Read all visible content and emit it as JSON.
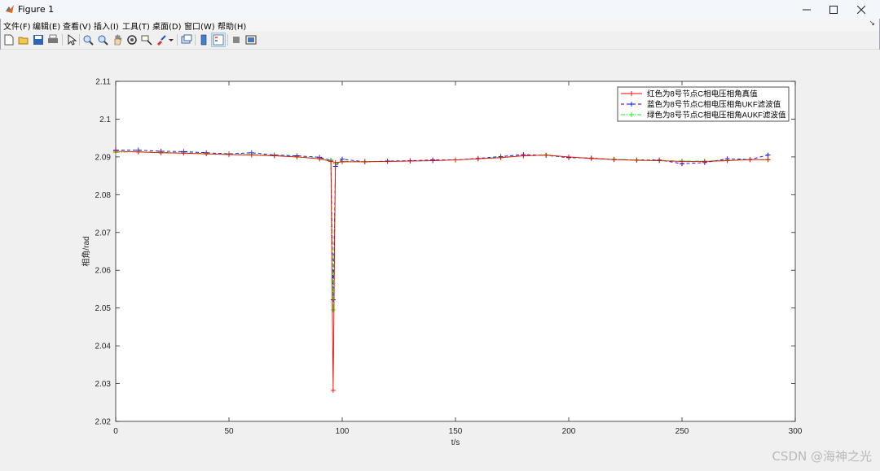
{
  "window": {
    "title": "Figure 1"
  },
  "menu": [
    "文件(F)",
    "编辑(E)",
    "查看(V)",
    "插入(I)",
    "工具(T)",
    "桌面(D)",
    "窗口(W)",
    "帮助(H)"
  ],
  "toolbar": {
    "icons": [
      "new-figure-icon",
      "open-file-icon",
      "save-icon",
      "print-icon",
      "pointer-icon",
      "zoom-in-icon",
      "zoom-out-icon",
      "pan-icon",
      "rotate-3d-icon",
      "data-cursor-icon",
      "brush-icon",
      "link-plot-icon",
      "colorbar-icon",
      "legend-icon",
      "hide-plot-tools-icon",
      "show-plot-tools-icon"
    ]
  },
  "watermark": "CSDN @海神之光",
  "chart_data": {
    "type": "line",
    "title": "",
    "xlabel": "t/s",
    "ylabel": "相角/rad",
    "xlim": [
      0,
      300
    ],
    "ylim": [
      2.02,
      2.11
    ],
    "xticks": [
      "0",
      "50",
      "100",
      "150",
      "200",
      "250",
      "300"
    ],
    "yticks": [
      "2.02",
      "2.03",
      "2.04",
      "2.05",
      "2.06",
      "2.07",
      "2.08",
      "2.09",
      "2.1",
      "2.11"
    ],
    "grid": false,
    "legend_position": "top-right",
    "series": [
      {
        "name": "红色为8号节点C相电压相角真值",
        "color": "#ff0000",
        "line": "solid",
        "marker": "+",
        "x": [
          0,
          10,
          20,
          30,
          40,
          50,
          60,
          70,
          80,
          90,
          95,
          96,
          97,
          100,
          110,
          120,
          130,
          140,
          150,
          160,
          170,
          180,
          190,
          200,
          210,
          220,
          230,
          240,
          250,
          260,
          270,
          280,
          288
        ],
        "y": [
          2.0915,
          2.0913,
          2.0911,
          2.091,
          2.0908,
          2.0906,
          2.0905,
          2.0903,
          2.09,
          2.0895,
          2.0888,
          2.0282,
          2.0885,
          2.0887,
          2.0887,
          2.0888,
          2.0889,
          2.089,
          2.0892,
          2.0895,
          2.0898,
          2.0903,
          2.0905,
          2.09,
          2.0896,
          2.0893,
          2.0891,
          2.089,
          2.0888,
          2.0888,
          2.089,
          2.0893,
          2.0893
        ]
      },
      {
        "name": "蓝色为8号节点C相电压相角UKF滤波值",
        "color": "#0000ff",
        "line": "dashed",
        "marker": "+",
        "x": [
          0,
          10,
          20,
          30,
          40,
          50,
          60,
          70,
          80,
          90,
          95,
          96,
          97,
          100,
          110,
          120,
          130,
          140,
          150,
          160,
          170,
          180,
          190,
          200,
          210,
          220,
          230,
          240,
          250,
          260,
          270,
          280,
          288
        ],
        "y": [
          2.0918,
          2.0918,
          2.0915,
          2.0914,
          2.0911,
          2.0908,
          2.0911,
          2.0905,
          2.0903,
          2.0899,
          2.0891,
          2.0522,
          2.0875,
          2.0894,
          2.0887,
          2.0889,
          2.089,
          2.0892,
          2.0892,
          2.0896,
          2.0901,
          2.0906,
          2.0904,
          2.0898,
          2.0897,
          2.0893,
          2.0892,
          2.0892,
          2.0882,
          2.0885,
          2.0895,
          2.0893,
          2.0905
        ]
      },
      {
        "name": "绿色为8号节点C相电压相角AUKF滤波值",
        "color": "#00ff00",
        "line": "dashdot",
        "marker": "+",
        "x": [
          0,
          10,
          20,
          30,
          40,
          50,
          60,
          70,
          80,
          90,
          95,
          96,
          97,
          100,
          110,
          120,
          130,
          140,
          150,
          160,
          170,
          180,
          190,
          200,
          210,
          220,
          230,
          240,
          250,
          260,
          270,
          280,
          288
        ],
        "y": [
          2.0912,
          2.0914,
          2.0912,
          2.0911,
          2.0909,
          2.0907,
          2.0906,
          2.0904,
          2.0901,
          2.0896,
          2.089,
          2.0495,
          2.0883,
          2.0888,
          2.0888,
          2.0888,
          2.0889,
          2.089,
          2.0892,
          2.0895,
          2.0899,
          2.0903,
          2.0904,
          2.09,
          2.0896,
          2.0894,
          2.0892,
          2.0891,
          2.0889,
          2.0889,
          2.0891,
          2.0893,
          2.0892
        ]
      }
    ]
  }
}
